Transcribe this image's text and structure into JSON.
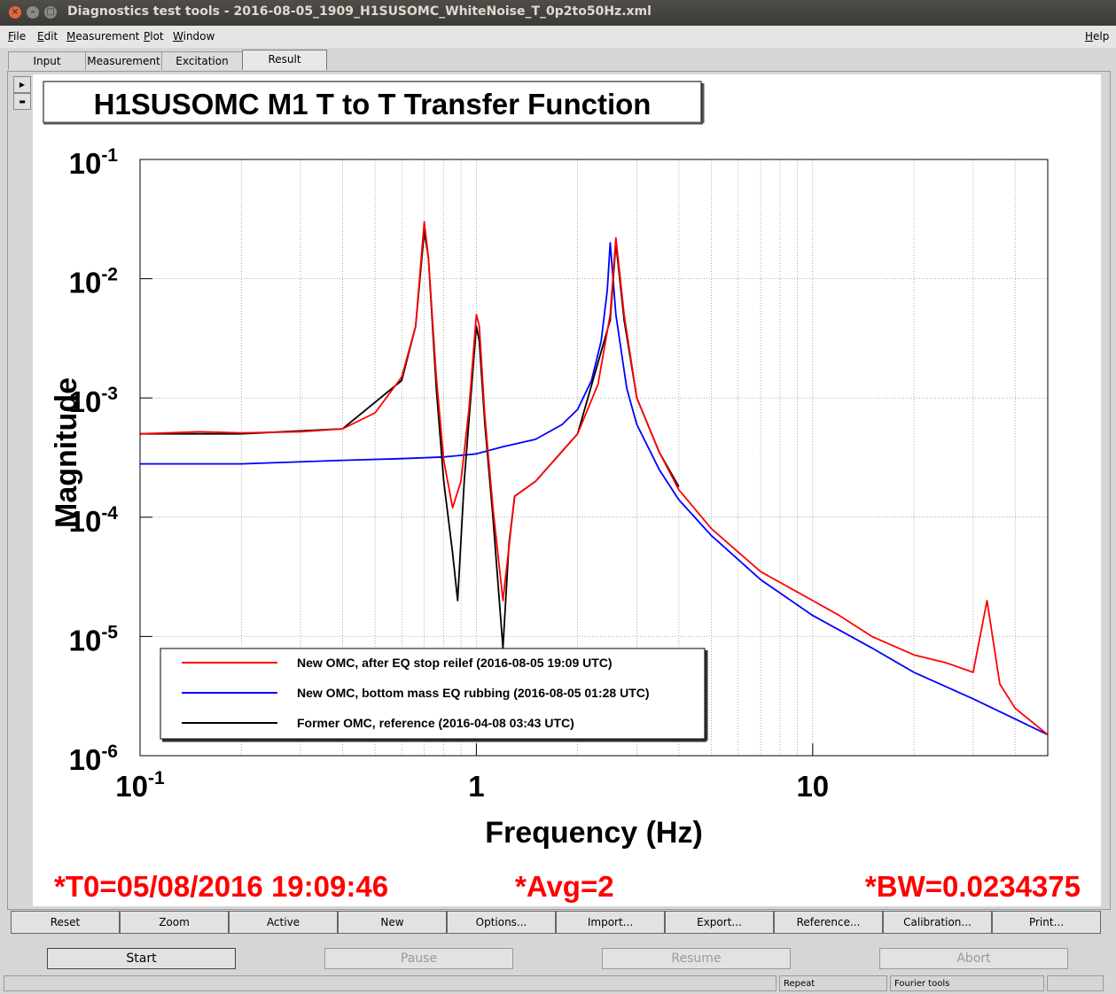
{
  "window": {
    "title": "Diagnostics test tools - 2016-08-05_1909_H1SUSOMC_WhiteNoise_T_0p2to50Hz.xml",
    "buttons": {
      "close": "×",
      "minimize": "–",
      "maximize": "□"
    }
  },
  "menu": {
    "items": [
      "File",
      "Edit",
      "Measurement",
      "Plot",
      "Window"
    ],
    "help": "Help"
  },
  "tabs": [
    {
      "label": "Input"
    },
    {
      "label": "Measurement"
    },
    {
      "label": "Excitation"
    },
    {
      "label": "Result",
      "active": true
    }
  ],
  "side_buttons": {
    "expand": "▶",
    "collapse": "▬"
  },
  "plot": {
    "title": "H1SUSOMC M1 T to T Transfer Function",
    "footer": {
      "t0": "*T0=05/08/2016 19:09:46",
      "avg": "*Avg=2",
      "bw": "*BW=0.0234375"
    }
  },
  "chart_data": {
    "type": "line",
    "title": "H1SUSOMC M1 T to T Transfer Function",
    "xlabel": "Frequency (Hz)",
    "ylabel": "Magnitude",
    "x_scale": "log",
    "y_scale": "log",
    "xlim": [
      0.1,
      50
    ],
    "ylim": [
      1e-06,
      0.1
    ],
    "x_ticks": [
      {
        "base": "10",
        "exp": "-1"
      },
      {
        "base": "1",
        "exp": ""
      },
      {
        "base": "10",
        "exp": ""
      }
    ],
    "y_ticks": [
      {
        "base": "10",
        "exp": "-1"
      },
      {
        "base": "10",
        "exp": "-2"
      },
      {
        "base": "10",
        "exp": "-3"
      },
      {
        "base": "10",
        "exp": "-4"
      },
      {
        "base": "10",
        "exp": "-5"
      },
      {
        "base": "10",
        "exp": "-6"
      }
    ],
    "grid": true,
    "legend_position": "bottom-left",
    "series": [
      {
        "name": "New OMC, after EQ stop reilef (2016-08-05 19:09 UTC)",
        "color": "#ff0000",
        "x": [
          0.1,
          0.15,
          0.2,
          0.3,
          0.4,
          0.5,
          0.6,
          0.66,
          0.7,
          0.72,
          0.76,
          0.8,
          0.85,
          0.9,
          0.95,
          1.0,
          1.02,
          1.06,
          1.12,
          1.2,
          1.3,
          1.5,
          2.0,
          2.3,
          2.5,
          2.6,
          2.75,
          3.0,
          3.5,
          4.0,
          5.0,
          7.0,
          10.0,
          12.0,
          15.0,
          20.0,
          25.0,
          30.0,
          33.0,
          36.0,
          40.0,
          50.0
        ],
        "y": [
          0.0005,
          0.00052,
          0.00051,
          0.00052,
          0.00055,
          0.00075,
          0.0015,
          0.004,
          0.03,
          0.015,
          0.0015,
          0.0003,
          0.00012,
          0.0002,
          0.0008,
          0.005,
          0.004,
          0.0007,
          0.00012,
          2e-05,
          0.00015,
          0.0002,
          0.0005,
          0.0013,
          0.005,
          0.022,
          0.005,
          0.001,
          0.00035,
          0.00017,
          8e-05,
          3.5e-05,
          2e-05,
          1.5e-05,
          1e-05,
          7e-06,
          6e-06,
          5e-06,
          2e-05,
          4e-06,
          2.5e-06,
          1.5e-06
        ]
      },
      {
        "name": "New OMC, bottom mass EQ rubbing  (2016-08-05 01:28 UTC)",
        "color": "#0000ff",
        "x": [
          0.1,
          0.2,
          0.4,
          0.6,
          0.8,
          1.0,
          1.2,
          1.5,
          1.8,
          2.0,
          2.2,
          2.35,
          2.45,
          2.5,
          2.6,
          2.8,
          3.0,
          3.5,
          4.0,
          5.0,
          7.0,
          10.0,
          15.0,
          20.0,
          30.0,
          50.0
        ],
        "y": [
          0.00028,
          0.00028,
          0.0003,
          0.00031,
          0.00032,
          0.00034,
          0.00039,
          0.00045,
          0.0006,
          0.0008,
          0.0014,
          0.003,
          0.008,
          0.02,
          0.005,
          0.0012,
          0.0006,
          0.00025,
          0.00014,
          7e-05,
          3e-05,
          1.5e-05,
          8e-06,
          5e-06,
          3e-06,
          1.5e-06
        ]
      },
      {
        "name": "Former OMC, reference (2016-04-08 03:43 UTC)",
        "color": "#000000",
        "x": [
          0.1,
          0.2,
          0.4,
          0.6,
          0.66,
          0.7,
          0.72,
          0.76,
          0.8,
          0.85,
          0.88,
          0.92,
          1.0,
          1.02,
          1.06,
          1.12,
          1.2,
          1.25,
          1.3,
          1.5,
          2.0,
          2.5,
          2.6,
          2.75,
          3.0,
          3.5,
          4.0
        ],
        "y": [
          0.0005,
          0.0005,
          0.00055,
          0.0014,
          0.004,
          0.025,
          0.015,
          0.0012,
          0.0002,
          5e-05,
          2e-05,
          0.0002,
          0.004,
          0.003,
          0.0006,
          0.0001,
          8e-06,
          6e-05,
          0.00015,
          0.0002,
          0.0005,
          0.0045,
          0.02,
          0.0045,
          0.001,
          0.00035,
          0.00018
        ]
      }
    ]
  },
  "plot_buttons": [
    "Reset",
    "Zoom",
    "Active",
    "New",
    "Options...",
    "Import...",
    "Export...",
    "Reference...",
    "Calibration...",
    "Print..."
  ],
  "control_buttons": [
    {
      "label": "Start",
      "enabled": true
    },
    {
      "label": "Pause",
      "enabled": false
    },
    {
      "label": "Resume",
      "enabled": false
    },
    {
      "label": "Abort",
      "enabled": false
    }
  ],
  "status": {
    "repeat": "Repeat",
    "fourier": "Fourier tools"
  }
}
